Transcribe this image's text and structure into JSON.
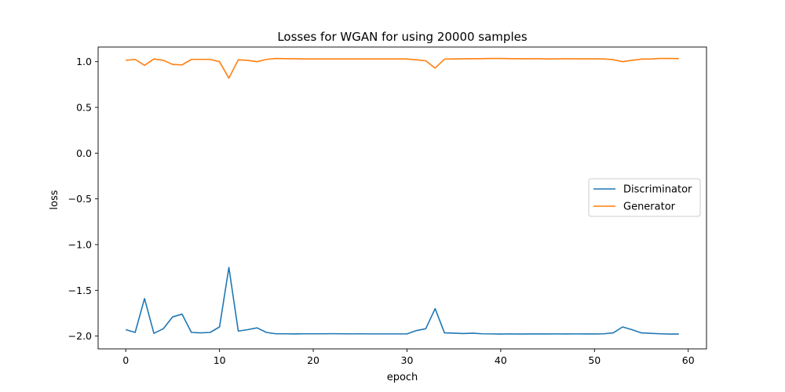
{
  "chart_data": {
    "type": "line",
    "title": "Losses for WGAN for using 20000 samples",
    "xlabel": "epoch",
    "ylabel": "loss",
    "xlim": [
      -2.95,
      61.95
    ],
    "ylim": [
      -2.14,
      1.16
    ],
    "xticks": [
      0,
      10,
      20,
      30,
      40,
      50,
      60
    ],
    "yticks": [
      -2.0,
      -1.5,
      -1.0,
      -0.5,
      0.0,
      0.5,
      1.0
    ],
    "ytick_labels": [
      "−2.0",
      "−1.5",
      "−1.0",
      "−0.5",
      "0.0",
      "0.5",
      "1.0"
    ],
    "grid": false,
    "legend_position": "center-right",
    "x": [
      0,
      1,
      2,
      3,
      4,
      5,
      6,
      7,
      8,
      9,
      10,
      11,
      12,
      13,
      14,
      15,
      16,
      17,
      18,
      19,
      20,
      21,
      22,
      23,
      24,
      25,
      26,
      27,
      28,
      29,
      30,
      31,
      32,
      33,
      34,
      35,
      36,
      37,
      38,
      39,
      40,
      41,
      42,
      43,
      44,
      45,
      46,
      47,
      48,
      49,
      50,
      51,
      52,
      53,
      54,
      55,
      56,
      57,
      58,
      59
    ],
    "series": [
      {
        "name": "Discriminator",
        "color": "#1f77b4",
        "values": [
          -1.93,
          -1.96,
          -1.59,
          -1.97,
          -1.92,
          -1.79,
          -1.76,
          -1.96,
          -1.965,
          -1.96,
          -1.9,
          -1.25,
          -1.945,
          -1.93,
          -1.91,
          -1.96,
          -1.975,
          -1.975,
          -1.977,
          -1.975,
          -1.975,
          -1.975,
          -1.974,
          -1.975,
          -1.976,
          -1.975,
          -1.976,
          -1.976,
          -1.976,
          -1.976,
          -1.976,
          -1.94,
          -1.92,
          -1.7,
          -1.965,
          -1.968,
          -1.972,
          -1.968,
          -1.975,
          -1.976,
          -1.978,
          -1.976,
          -1.978,
          -1.977,
          -1.977,
          -1.977,
          -1.976,
          -1.977,
          -1.976,
          -1.977,
          -1.977,
          -1.975,
          -1.965,
          -1.9,
          -1.93,
          -1.965,
          -1.97,
          -1.975,
          -1.978,
          -1.978
        ]
      },
      {
        "name": "Generator",
        "color": "#ff7f0e",
        "values": [
          1.015,
          1.025,
          0.96,
          1.03,
          1.015,
          0.97,
          0.965,
          1.025,
          1.025,
          1.025,
          1.0,
          0.82,
          1.02,
          1.015,
          1.0,
          1.025,
          1.035,
          1.033,
          1.032,
          1.03,
          1.03,
          1.03,
          1.03,
          1.03,
          1.03,
          1.03,
          1.03,
          1.03,
          1.03,
          1.03,
          1.03,
          1.02,
          1.01,
          0.93,
          1.028,
          1.03,
          1.032,
          1.032,
          1.033,
          1.035,
          1.035,
          1.033,
          1.032,
          1.032,
          1.032,
          1.03,
          1.031,
          1.032,
          1.031,
          1.031,
          1.031,
          1.03,
          1.022,
          1.0,
          1.015,
          1.028,
          1.03,
          1.035,
          1.035,
          1.033
        ]
      }
    ]
  }
}
